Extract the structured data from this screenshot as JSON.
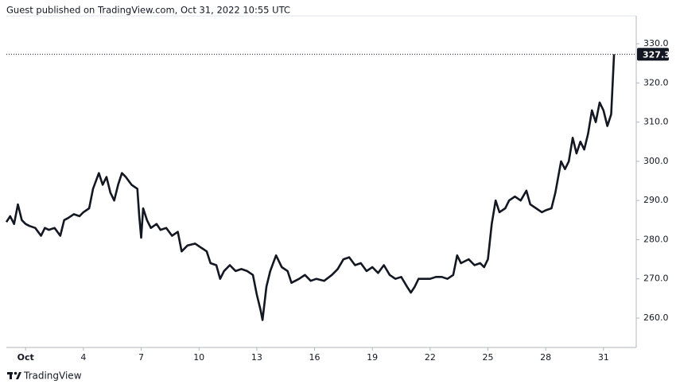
{
  "header": "Guest published on TradingView.com, Oct 31, 2022 10:55 UTC",
  "footer": "TradingView",
  "chart_data": {
    "type": "line",
    "color": "#131722",
    "x": [
      0.0,
      0.2,
      0.4,
      0.6,
      0.8,
      1.0,
      1.2,
      1.5,
      1.8,
      2.0,
      2.2,
      2.5,
      2.8,
      3.0,
      3.2,
      3.5,
      3.8,
      4.0,
      4.3,
      4.5,
      4.8,
      5.0,
      5.2,
      5.4,
      5.6,
      5.8,
      6.0,
      6.2,
      6.5,
      6.8,
      6.9,
      7.0,
      7.1,
      7.3,
      7.5,
      7.8,
      8.0,
      8.3,
      8.6,
      8.9,
      9.1,
      9.4,
      9.8,
      10.1,
      10.4,
      10.6,
      10.9,
      11.1,
      11.3,
      11.6,
      11.9,
      12.2,
      12.5,
      12.8,
      13.0,
      13.2,
      13.3,
      13.5,
      13.7,
      14.0,
      14.3,
      14.6,
      14.8,
      15.2,
      15.5,
      15.8,
      16.1,
      16.5,
      16.9,
      17.2,
      17.5,
      17.8,
      18.1,
      18.4,
      18.7,
      19.0,
      19.3,
      19.6,
      19.9,
      20.2,
      20.5,
      20.8,
      21.0,
      21.2,
      21.4,
      21.7,
      22.0,
      22.3,
      22.6,
      22.9,
      23.2,
      23.4,
      23.6,
      24.0,
      24.3,
      24.6,
      24.8,
      25.0,
      25.2,
      25.4,
      25.6,
      25.9,
      26.1,
      26.4,
      26.7,
      27.0,
      27.2,
      27.5,
      27.8,
      28.0,
      28.3,
      28.5,
      28.8,
      29.0,
      29.2,
      29.4,
      29.6,
      29.8,
      30.0,
      30.2,
      30.4,
      30.6,
      30.8,
      31.0,
      31.2,
      31.4,
      31.55
    ],
    "values": [
      284.5,
      286,
      284,
      289,
      285,
      284,
      283.5,
      283,
      281,
      283,
      282.5,
      283,
      281,
      285,
      285.5,
      286.5,
      286,
      287,
      288,
      293,
      297,
      294,
      296,
      292,
      290,
      294,
      297,
      296,
      294,
      293,
      286,
      280.5,
      288,
      285,
      283,
      284,
      282.5,
      283,
      281,
      282,
      277,
      278.5,
      279,
      278,
      277,
      274,
      273.5,
      270,
      272,
      273.5,
      272,
      272.5,
      272,
      271,
      266,
      262,
      259.5,
      268,
      272,
      276,
      273,
      272,
      269,
      270,
      271,
      269.5,
      270,
      269.5,
      271,
      272.5,
      275,
      275.5,
      273.5,
      274,
      272,
      273,
      271.5,
      273.5,
      271,
      270,
      270.5,
      268,
      266.5,
      268,
      270,
      270,
      270,
      270.5,
      270.5,
      270,
      271,
      276,
      274,
      275,
      273.5,
      274,
      273,
      275,
      284,
      290,
      287,
      288,
      290,
      291,
      290,
      292.5,
      289,
      288,
      287,
      287.5,
      288,
      292,
      300,
      298,
      300,
      306,
      302,
      305,
      303,
      307,
      313,
      310,
      315,
      313,
      309,
      312,
      327.3
    ],
    "xlim": [
      0.0,
      32.7
    ],
    "xticks": [
      {
        "value": 1,
        "label": "Oct"
      },
      4,
      7,
      10,
      13,
      16,
      19,
      22,
      25,
      28,
      31
    ],
    "ylim": [
      252.5,
      337.1
    ],
    "yticks": [
      {
        "value": 260,
        "label": "260.0"
      },
      {
        "value": 270,
        "label": "270.0"
      },
      {
        "value": 280,
        "label": "280.0"
      },
      {
        "value": 290,
        "label": "290.0"
      },
      {
        "value": 300,
        "label": "300.0"
      },
      {
        "value": 310,
        "label": "310.0"
      },
      {
        "value": 320,
        "label": "320.0"
      },
      {
        "value": 330,
        "label": "330.0"
      }
    ],
    "last_value": 327.3,
    "last_value_color": "#131722"
  }
}
